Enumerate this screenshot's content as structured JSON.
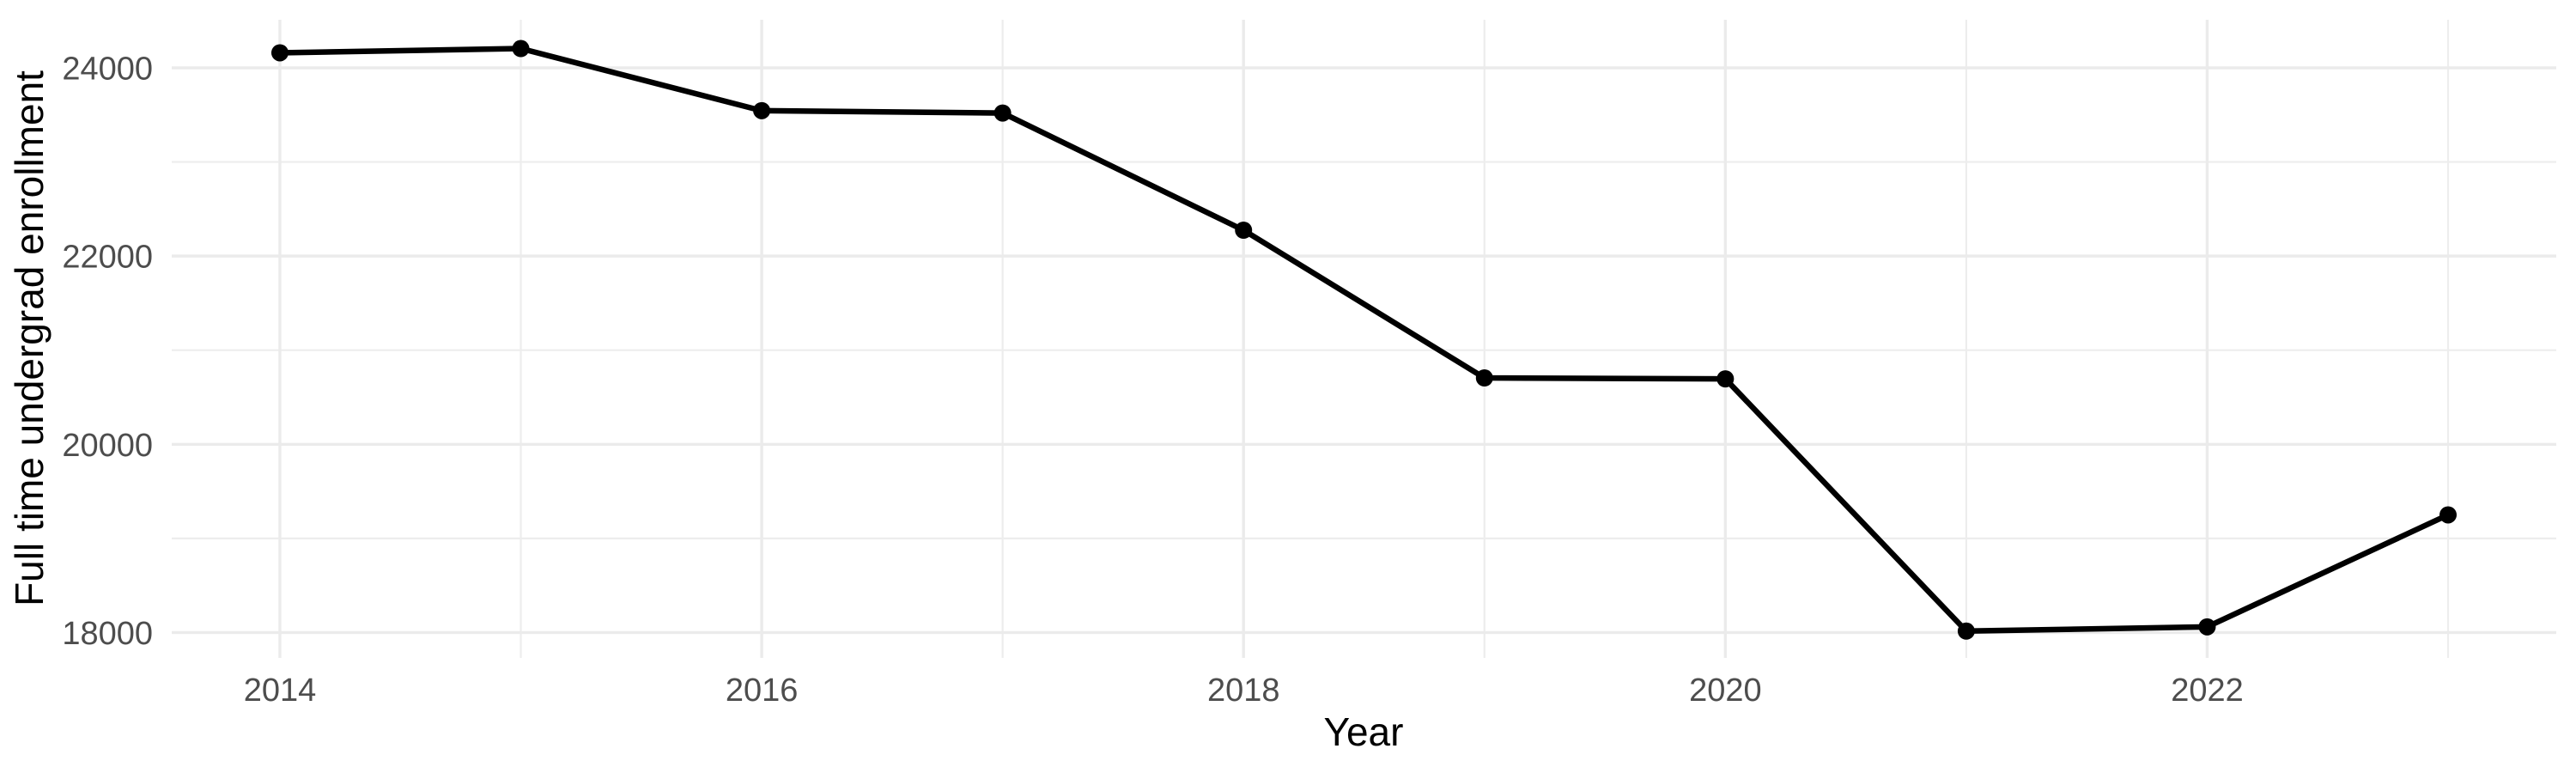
{
  "chart_data": {
    "type": "line",
    "title": "",
    "xlabel": "Year",
    "ylabel": "Full time undergrad enrollment",
    "x": [
      2014,
      2015,
      2016,
      2017,
      2018,
      2019,
      2020,
      2021,
      2022,
      2023
    ],
    "series": [
      {
        "name": "Full time undergrad enrollment",
        "values": [
          24160,
          24205,
          23545,
          23520,
          22275,
          20705,
          20695,
          18015,
          18060,
          19250
        ]
      }
    ],
    "x_major_ticks": [
      2014,
      2016,
      2018,
      2020,
      2022
    ],
    "x_minor_ticks": [
      2015,
      2017,
      2019,
      2021,
      2023
    ],
    "y_major_ticks": [
      18000,
      20000,
      22000,
      24000
    ],
    "y_minor_ticks": [
      19000,
      21000,
      23000
    ],
    "xlim": [
      2013.551,
      2023.449
    ],
    "ylim": [
      17730,
      24511
    ],
    "grid": "major+minor",
    "legend": "none",
    "marker": "filled-circle",
    "colors": {
      "line": "#000000",
      "point": "#000000",
      "grid_major": "#EBEBEB",
      "grid_minor": "#EDEDED",
      "axis_text": "#4D4D4D",
      "axis_title": "#000000",
      "background": "#FFFFFF"
    }
  }
}
